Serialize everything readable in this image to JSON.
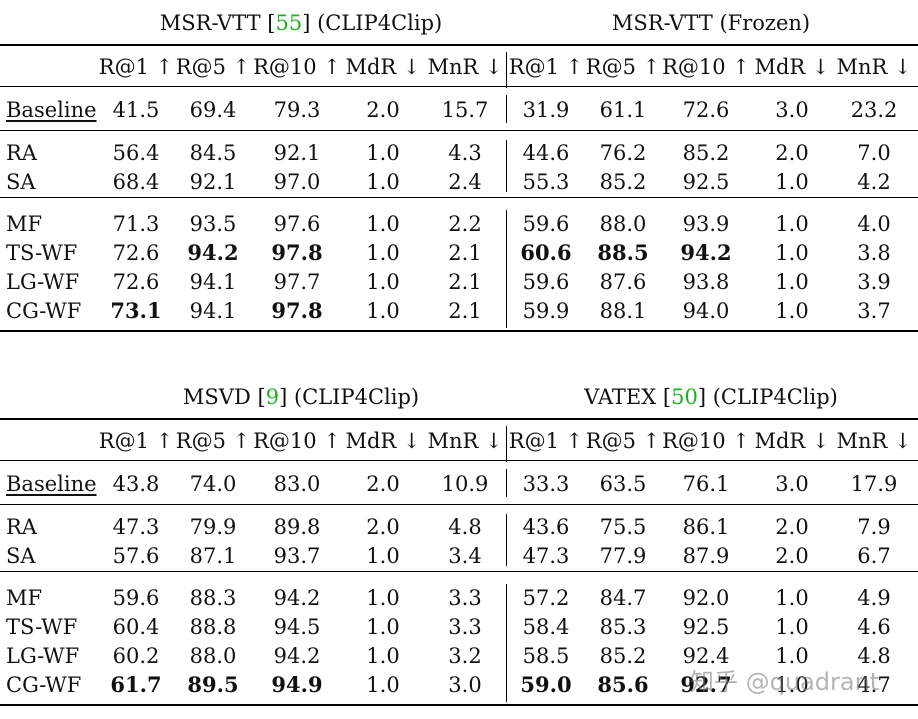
{
  "tables": [
    {
      "groups": [
        {
          "name": "MSR-VTT",
          "cite": "55",
          "suffix": "(CLIP4Clip)"
        },
        {
          "name": "MSR-VTT",
          "cite": "",
          "suffix": "(Frozen)"
        }
      ],
      "metrics": [
        "R@1 ↑",
        "R@5 ↑",
        "R@10 ↑",
        "MdR ↓",
        "MnR ↓"
      ],
      "rows": [
        {
          "label": "Baseline",
          "values": [
            "41.5",
            "69.4",
            "79.3",
            "2.0",
            "15.7",
            "31.9",
            "61.1",
            "72.6",
            "3.0",
            "23.2"
          ],
          "bold": []
        },
        {
          "label": "RA",
          "values": [
            "56.4",
            "84.5",
            "92.1",
            "1.0",
            "4.3",
            "44.6",
            "76.2",
            "85.2",
            "2.0",
            "7.0"
          ],
          "bold": []
        },
        {
          "label": "SA",
          "values": [
            "68.4",
            "92.1",
            "97.0",
            "1.0",
            "2.4",
            "55.3",
            "85.2",
            "92.5",
            "1.0",
            "4.2"
          ],
          "bold": []
        },
        {
          "label": "MF",
          "values": [
            "71.3",
            "93.5",
            "97.6",
            "1.0",
            "2.2",
            "59.6",
            "88.0",
            "93.9",
            "1.0",
            "4.0"
          ],
          "bold": []
        },
        {
          "label": "TS-WF",
          "values": [
            "72.6",
            "94.2",
            "97.8",
            "1.0",
            "2.1",
            "60.6",
            "88.5",
            "94.2",
            "1.0",
            "3.8"
          ],
          "bold": [
            1,
            2,
            5,
            6,
            7
          ]
        },
        {
          "label": "LG-WF",
          "values": [
            "72.6",
            "94.1",
            "97.7",
            "1.0",
            "2.1",
            "59.6",
            "87.6",
            "93.8",
            "1.0",
            "3.9"
          ],
          "bold": []
        },
        {
          "label": "CG-WF",
          "values": [
            "73.1",
            "94.1",
            "97.8",
            "1.0",
            "2.1",
            "59.9",
            "88.1",
            "94.0",
            "1.0",
            "3.7"
          ],
          "bold": [
            0,
            2
          ]
        }
      ]
    },
    {
      "groups": [
        {
          "name": "MSVD",
          "cite": "9",
          "suffix": "(CLIP4Clip)"
        },
        {
          "name": "VATEX",
          "cite": "50",
          "suffix": "(CLIP4Clip)"
        }
      ],
      "metrics": [
        "R@1 ↑",
        "R@5 ↑",
        "R@10 ↑",
        "MdR ↓",
        "MnR ↓"
      ],
      "rows": [
        {
          "label": "Baseline",
          "values": [
            "43.8",
            "74.0",
            "83.0",
            "2.0",
            "10.9",
            "33.3",
            "63.5",
            "76.1",
            "3.0",
            "17.9"
          ],
          "bold": []
        },
        {
          "label": "RA",
          "values": [
            "47.3",
            "79.9",
            "89.8",
            "2.0",
            "4.8",
            "43.6",
            "75.5",
            "86.1",
            "2.0",
            "7.9"
          ],
          "bold": []
        },
        {
          "label": "SA",
          "values": [
            "57.6",
            "87.1",
            "93.7",
            "1.0",
            "3.4",
            "47.3",
            "77.9",
            "87.9",
            "2.0",
            "6.7"
          ],
          "bold": []
        },
        {
          "label": "MF",
          "values": [
            "59.6",
            "88.3",
            "94.2",
            "1.0",
            "3.3",
            "57.2",
            "84.7",
            "92.0",
            "1.0",
            "4.9"
          ],
          "bold": []
        },
        {
          "label": "TS-WF",
          "values": [
            "60.4",
            "88.8",
            "94.5",
            "1.0",
            "3.3",
            "58.4",
            "85.3",
            "92.5",
            "1.0",
            "4.6"
          ],
          "bold": []
        },
        {
          "label": "LG-WF",
          "values": [
            "60.2",
            "88.0",
            "94.2",
            "1.0",
            "3.2",
            "58.5",
            "85.2",
            "92.4",
            "1.0",
            "4.8"
          ],
          "bold": []
        },
        {
          "label": "CG-WF",
          "values": [
            "61.7",
            "89.5",
            "94.9",
            "1.0",
            "3.0",
            "59.0",
            "85.6",
            "92.7",
            "1.0",
            "4.7"
          ],
          "bold": [
            0,
            1,
            2,
            5,
            6,
            7
          ]
        }
      ]
    }
  ],
  "watermark": "知乎 @quadrant"
}
